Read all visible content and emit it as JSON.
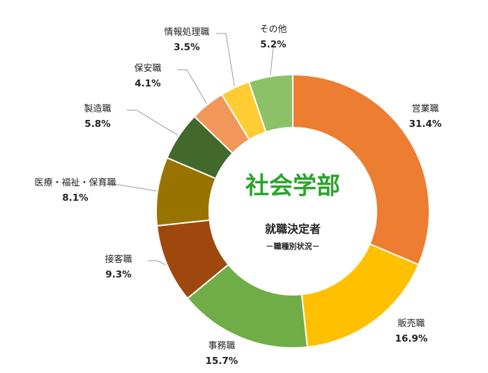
{
  "chart_data": {
    "type": "pie",
    "title": "社会学部",
    "subtitle": "就職決定者",
    "subtitle2": "－職種別状況－",
    "title_color": "#2AA42A",
    "slices": [
      {
        "label": "営業職",
        "value": 31.4,
        "display": "31.4%",
        "color": "#ED7D31"
      },
      {
        "label": "販売職",
        "value": 16.9,
        "display": "16.9%",
        "color": "#FFC000"
      },
      {
        "label": "事務職",
        "value": 15.7,
        "display": "15.7%",
        "color": "#70AD47"
      },
      {
        "label": "接客職",
        "value": 9.3,
        "display": "9.3%",
        "color": "#9E480E"
      },
      {
        "label": "医療・福祉・保育職",
        "value": 8.1,
        "display": "8.1%",
        "color": "#997300"
      },
      {
        "label": "製造職",
        "value": 5.8,
        "display": "5.8%",
        "color": "#43682B"
      },
      {
        "label": "保安職",
        "value": 4.1,
        "display": "4.1%",
        "color": "#F1975A"
      },
      {
        "label": "情報処理職",
        "value": 3.5,
        "display": "3.5%",
        "color": "#FFCD33"
      },
      {
        "label": "その他",
        "value": 5.2,
        "display": "5.2%",
        "color": "#8CC168"
      }
    ]
  }
}
